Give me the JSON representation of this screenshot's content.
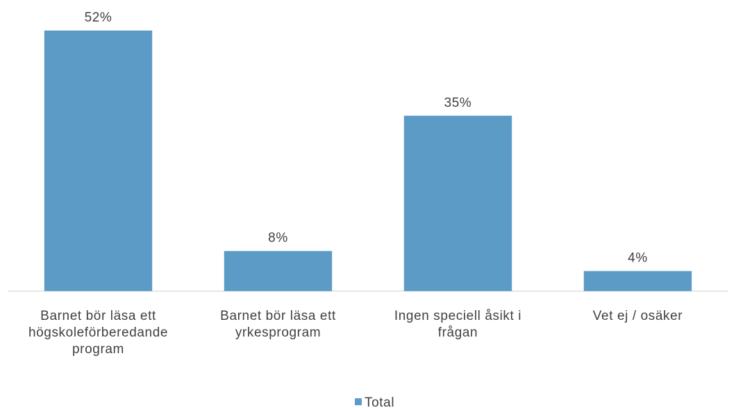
{
  "chart_data": {
    "type": "bar",
    "categories": [
      "Barnet bör läsa ett högskoleförberedande program",
      "Barnet bör läsa ett yrkesprogram",
      "Ingen speciell åsikt i frågan",
      "Vet ej / osäker"
    ],
    "series": [
      {
        "name": "Total",
        "color": "#5b9bc6",
        "values": [
          52,
          8,
          35,
          4
        ],
        "value_labels": [
          "52%",
          "8%",
          "35%",
          "4%"
        ]
      }
    ],
    "legend": "bottom"
  }
}
